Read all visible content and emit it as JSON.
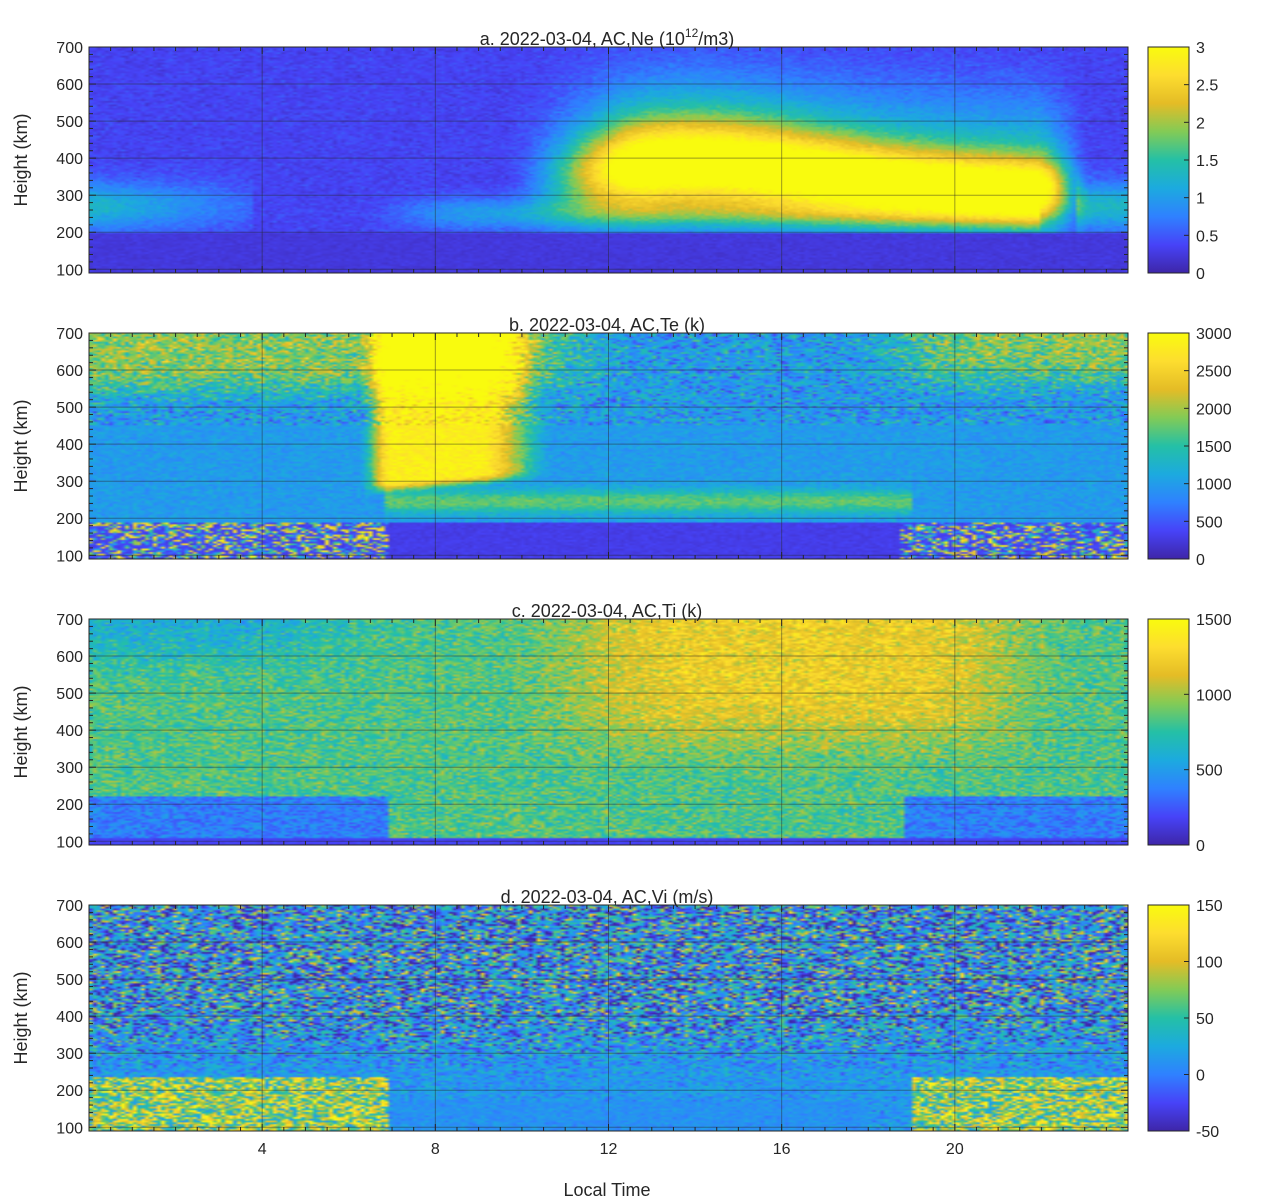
{
  "figure": {
    "xlabel": "Local Time",
    "xticks": [
      4,
      8,
      12,
      16,
      20
    ],
    "xlim": [
      0,
      24
    ],
    "colormap": [
      "#3e26a8",
      "#4743f8",
      "#2f81ff",
      "#1caadf",
      "#24c0a6",
      "#82cb56",
      "#e4bc26",
      "#fddd2f",
      "#f9fb0e"
    ]
  },
  "chart_data": [
    {
      "type": "heatmap",
      "title_parts": {
        "prefix": "a. 2022-03-04, AC,Ne (10",
        "sup": "12",
        "suffix": "/m3)"
      },
      "xlabel": "",
      "ylabel": "Height (km)",
      "xlim": [
        0,
        24
      ],
      "ylim": [
        90,
        700
      ],
      "yticks": [
        100,
        200,
        300,
        400,
        500,
        600,
        700
      ],
      "clim": [
        0,
        3
      ],
      "cticks": [
        0,
        0.5,
        1,
        1.5,
        2,
        2.5,
        3
      ],
      "cticklabels": [
        "0",
        "0.5",
        "1",
        "1.5",
        "2",
        "2.5",
        "3"
      ],
      "grid": true
    },
    {
      "type": "heatmap",
      "title": "b. 2022-03-04, AC,Te (k)",
      "xlabel": "",
      "ylabel": "Height (km)",
      "xlim": [
        0,
        24
      ],
      "ylim": [
        90,
        700
      ],
      "yticks": [
        100,
        200,
        300,
        400,
        500,
        600,
        700
      ],
      "clim": [
        0,
        3000
      ],
      "cticks": [
        0,
        500,
        1000,
        1500,
        2000,
        2500,
        3000
      ],
      "cticklabels": [
        "0",
        "500",
        "1000",
        "1500",
        "2000",
        "2500",
        "3000"
      ],
      "grid": true
    },
    {
      "type": "heatmap",
      "title": "c. 2022-03-04, AC,Ti (k)",
      "xlabel": "",
      "ylabel": "Height (km)",
      "xlim": [
        0,
        24
      ],
      "ylim": [
        90,
        700
      ],
      "yticks": [
        100,
        200,
        300,
        400,
        500,
        600,
        700
      ],
      "clim": [
        0,
        1500
      ],
      "cticks": [
        0,
        500,
        1000,
        1500
      ],
      "cticklabels": [
        "0",
        "500",
        "1000",
        "1500"
      ],
      "grid": true
    },
    {
      "type": "heatmap",
      "title": "d. 2022-03-04, AC,Vi (m/s)",
      "xlabel": "Local Time",
      "ylabel": "Height (km)",
      "xlim": [
        0,
        24
      ],
      "ylim": [
        90,
        700
      ],
      "yticks": [
        100,
        200,
        300,
        400,
        500,
        600,
        700
      ],
      "clim": [
        -50,
        150
      ],
      "cticks": [
        -50,
        0,
        50,
        100,
        150
      ],
      "cticklabels": [
        "-50",
        "0",
        "50",
        "100",
        "150"
      ],
      "grid": true
    }
  ]
}
